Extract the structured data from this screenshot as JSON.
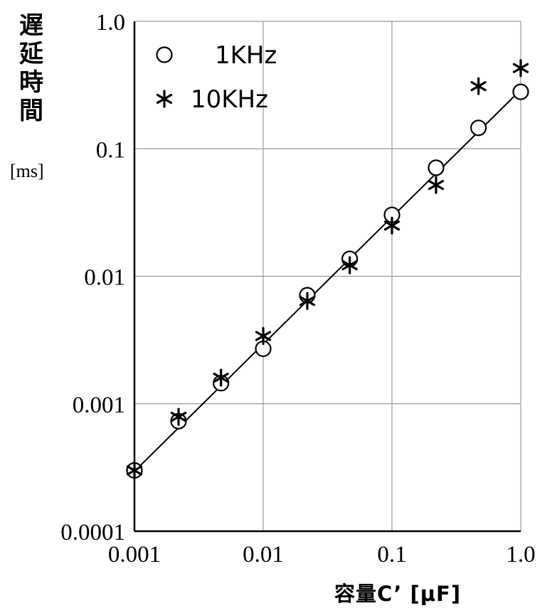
{
  "chart_data": {
    "type": "scatter",
    "x_scale": "log",
    "y_scale": "log",
    "xlim": [
      0.001,
      1.0
    ],
    "ylim": [
      0.0001,
      1.0
    ],
    "x_ticks": [
      "0.001",
      "0.01",
      "0.1",
      "1.0"
    ],
    "y_ticks": [
      "0.0001",
      "0.001",
      "0.01",
      "0.1",
      "1.0"
    ],
    "ylabel_lines": [
      "遅",
      "延",
      "時",
      "間"
    ],
    "ylabel_unit": "[ms]",
    "xlabel": "容量C’ [μF]",
    "grid": true,
    "legend_position": "top-left",
    "series": [
      {
        "name": "1KHz",
        "marker": "circle",
        "x": [
          0.001,
          0.0022,
          0.0047,
          0.01,
          0.022,
          0.047,
          0.1,
          0.22,
          0.47,
          1.0
        ],
        "y": [
          0.0003,
          0.00073,
          0.00145,
          0.0027,
          0.0071,
          0.0137,
          0.0303,
          0.071,
          0.146,
          0.28
        ]
      },
      {
        "name": "10KHz",
        "marker": "asterisk",
        "x": [
          0.001,
          0.0022,
          0.0047,
          0.01,
          0.022,
          0.047,
          0.1,
          0.22,
          0.47,
          1.0
        ],
        "y": [
          0.0003,
          0.00079,
          0.0016,
          0.0034,
          0.0064,
          0.0122,
          0.025,
          0.052,
          0.31,
          0.43
        ]
      }
    ],
    "fit_line": {
      "x": [
        0.001,
        1.0
      ],
      "y": [
        0.000295,
        0.29
      ]
    }
  }
}
